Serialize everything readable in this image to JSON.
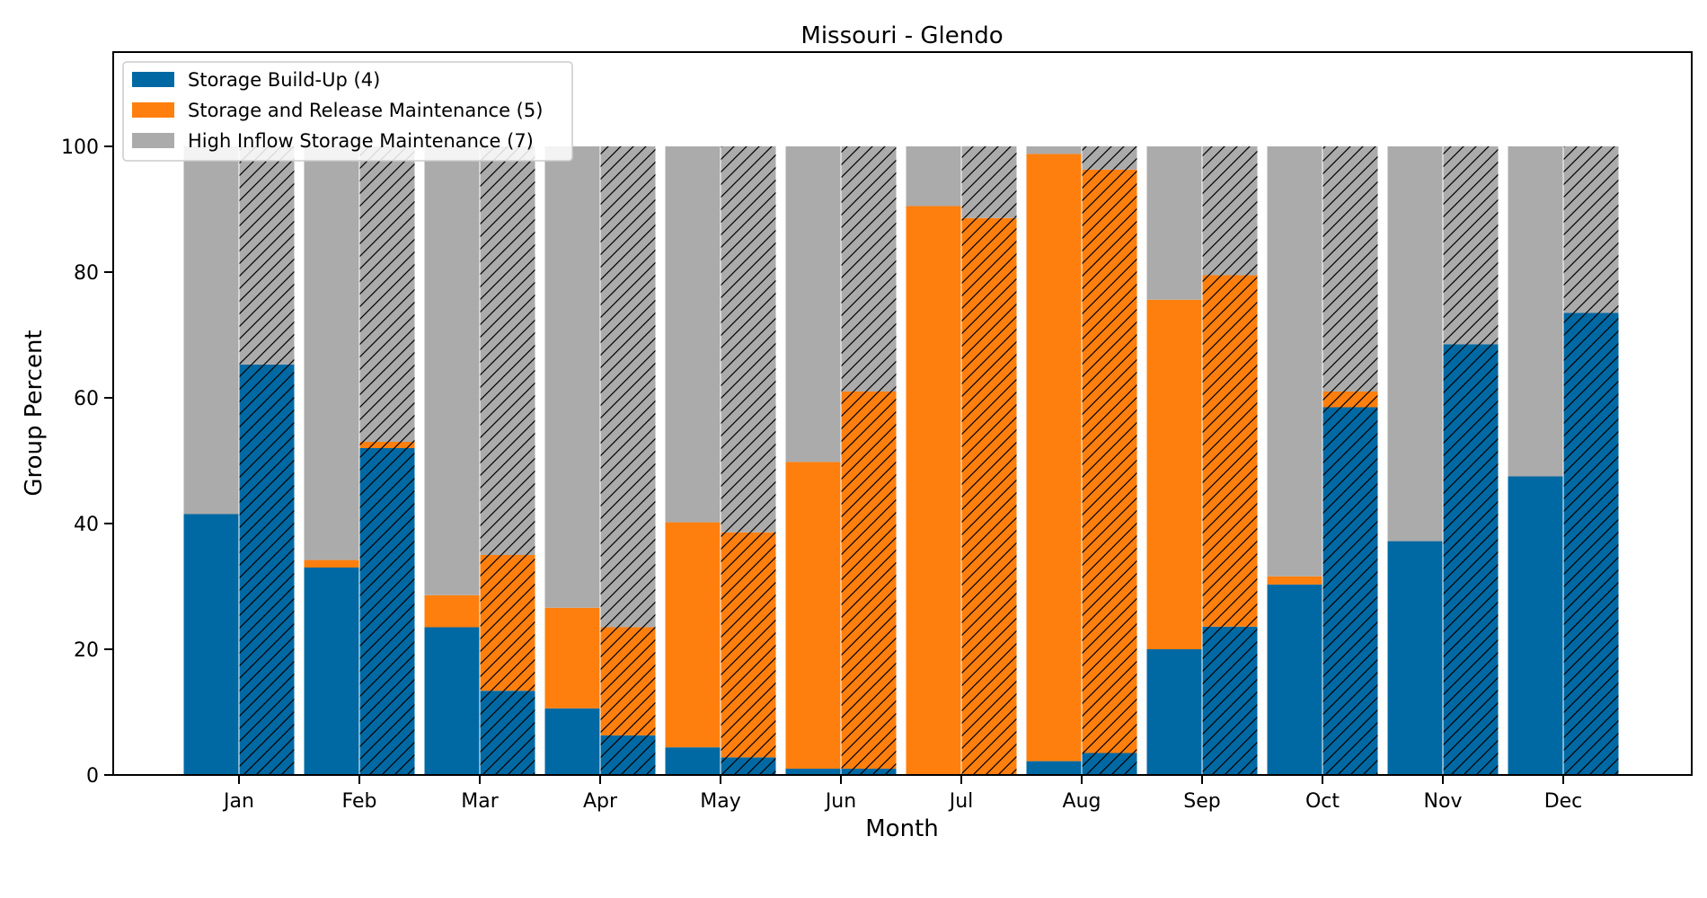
{
  "chart_data": {
    "type": "bar",
    "stacked": true,
    "title": "Missouri - Glendo",
    "xlabel": "Month",
    "ylabel": "Group Percent",
    "ylim": [
      0,
      115
    ],
    "yticks": [
      0,
      20,
      40,
      60,
      80,
      100
    ],
    "grid": false,
    "legend_position": "top-left",
    "categories": [
      "Jan",
      "Feb",
      "Mar",
      "Apr",
      "May",
      "Jun",
      "Jul",
      "Aug",
      "Sep",
      "Oct",
      "Nov",
      "Dec"
    ],
    "bars_per_category": [
      {
        "style": "solid"
      },
      {
        "style": "hatched"
      }
    ],
    "series": [
      {
        "name": "Storage Build-Up (4)",
        "color": "#0069a3",
        "solid": [
          41.5,
          33.0,
          23.5,
          10.6,
          4.4,
          1.0,
          0.0,
          2.2,
          20.0,
          30.3,
          37.2,
          47.5
        ],
        "hatched": [
          65.3,
          52.0,
          13.4,
          6.3,
          2.8,
          1.0,
          0.0,
          3.5,
          23.6,
          58.5,
          68.5,
          73.5
        ]
      },
      {
        "name": "Storage and Release Maintenance (5)",
        "color": "#ff7f0e",
        "solid": [
          0.0,
          1.2,
          5.1,
          16.0,
          35.8,
          48.8,
          90.5,
          96.6,
          55.6,
          1.3,
          0.0,
          0.0
        ],
        "hatched": [
          0.0,
          1.0,
          21.6,
          17.2,
          35.8,
          60.0,
          88.6,
          92.8,
          55.9,
          2.5,
          0.0,
          0.0
        ]
      },
      {
        "name": "High Inflow Storage Maintenance (7)",
        "color": "#ababab",
        "solid": [
          58.5,
          65.8,
          71.4,
          73.4,
          59.8,
          50.2,
          9.5,
          1.2,
          24.4,
          68.4,
          62.8,
          52.5
        ],
        "hatched": [
          34.7,
          47.0,
          65.0,
          76.5,
          61.4,
          39.0,
          11.4,
          3.7,
          20.5,
          39.0,
          31.5,
          26.5
        ]
      }
    ]
  }
}
